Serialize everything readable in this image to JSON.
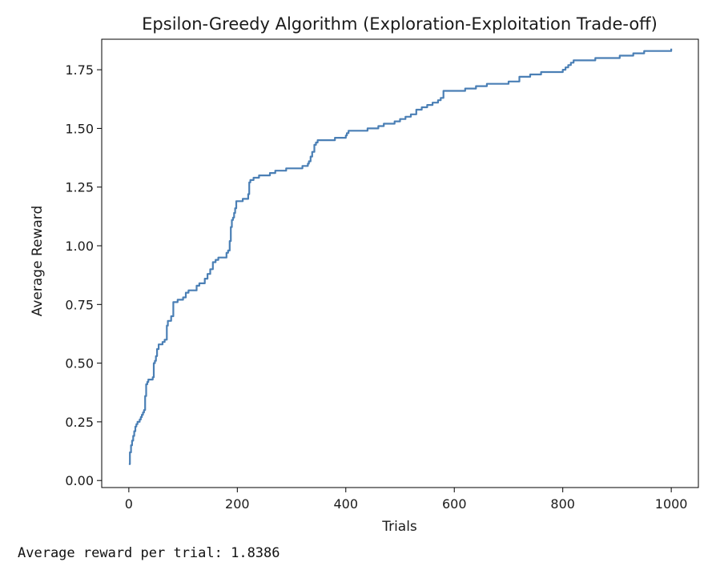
{
  "chart_data": {
    "type": "line",
    "title": "Epsilon-Greedy Algorithm (Exploration-Exploitation Trade-off)",
    "xlabel": "Trials",
    "ylabel": "Average Reward",
    "xlim": [
      -50,
      1050
    ],
    "ylim": [
      -0.03,
      1.88
    ],
    "xticks": [
      0,
      200,
      400,
      600,
      800,
      1000
    ],
    "xtick_labels": [
      "0",
      "200",
      "400",
      "600",
      "800",
      "1000"
    ],
    "yticks": [
      0,
      0.25,
      0.5,
      0.75,
      1.0,
      1.25,
      1.5,
      1.75
    ],
    "ytick_labels": [
      "0.00",
      "0.25",
      "0.50",
      "0.75",
      "1.00",
      "1.25",
      "1.50",
      "1.75"
    ],
    "grid": false,
    "color": "#4a7fb5",
    "series": [
      {
        "x": [
          0,
          2,
          4,
          6,
          8,
          10,
          12,
          14,
          16,
          18,
          20,
          22,
          24,
          26,
          28,
          30,
          32,
          34,
          36,
          38,
          40,
          42,
          44,
          46,
          48,
          50,
          52,
          55,
          58,
          62,
          66,
          70,
          72,
          75,
          78,
          82,
          86,
          90,
          95,
          100,
          105,
          110,
          115,
          120,
          125,
          130,
          135,
          140,
          145,
          150,
          155,
          160,
          165,
          170,
          175,
          180,
          183,
          186,
          188,
          190,
          192,
          194,
          196,
          198,
          200,
          205,
          210,
          215,
          220,
          222,
          224,
          230,
          240,
          250,
          260,
          270,
          280,
          290,
          300,
          310,
          320,
          330,
          332,
          335,
          338,
          342,
          345,
          348,
          360,
          380,
          400,
          402,
          405,
          420,
          440,
          450,
          460,
          470,
          480,
          490,
          500,
          510,
          520,
          530,
          540,
          550,
          560,
          570,
          575,
          580,
          600,
          620,
          640,
          660,
          680,
          700,
          720,
          740,
          760,
          780,
          800,
          805,
          810,
          815,
          820,
          840,
          860,
          880,
          900,
          905,
          910,
          930,
          950,
          960,
          980,
          1000
        ],
        "y": [
          0.07,
          0.12,
          0.15,
          0.17,
          0.19,
          0.21,
          0.23,
          0.24,
          0.25,
          0.25,
          0.26,
          0.27,
          0.28,
          0.29,
          0.3,
          0.36,
          0.41,
          0.42,
          0.43,
          0.43,
          0.43,
          0.43,
          0.44,
          0.5,
          0.51,
          0.53,
          0.56,
          0.58,
          0.58,
          0.59,
          0.6,
          0.66,
          0.68,
          0.68,
          0.7,
          0.76,
          0.76,
          0.77,
          0.77,
          0.78,
          0.8,
          0.81,
          0.81,
          0.81,
          0.83,
          0.84,
          0.84,
          0.86,
          0.88,
          0.9,
          0.93,
          0.94,
          0.95,
          0.95,
          0.95,
          0.97,
          0.98,
          1.02,
          1.08,
          1.11,
          1.12,
          1.14,
          1.16,
          1.19,
          1.19,
          1.19,
          1.2,
          1.2,
          1.22,
          1.27,
          1.28,
          1.29,
          1.3,
          1.3,
          1.31,
          1.32,
          1.32,
          1.33,
          1.33,
          1.33,
          1.34,
          1.35,
          1.36,
          1.38,
          1.4,
          1.43,
          1.44,
          1.45,
          1.45,
          1.46,
          1.47,
          1.48,
          1.49,
          1.49,
          1.5,
          1.5,
          1.51,
          1.52,
          1.52,
          1.53,
          1.54,
          1.55,
          1.56,
          1.58,
          1.59,
          1.6,
          1.61,
          1.62,
          1.63,
          1.66,
          1.66,
          1.67,
          1.68,
          1.69,
          1.69,
          1.7,
          1.72,
          1.73,
          1.74,
          1.74,
          1.75,
          1.76,
          1.77,
          1.78,
          1.79,
          1.79,
          1.8,
          1.8,
          1.8,
          1.81,
          1.81,
          1.82,
          1.83,
          1.83,
          1.83,
          1.84
        ]
      }
    ]
  },
  "output": {
    "text": "Average reward per trial: 1.8386"
  }
}
